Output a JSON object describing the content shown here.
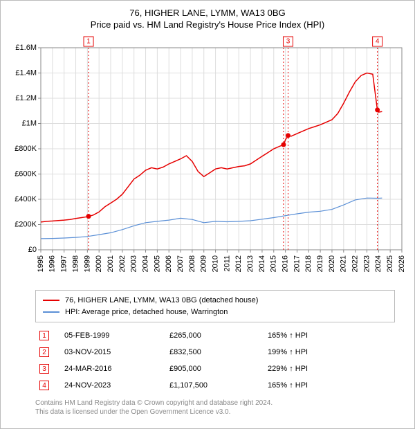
{
  "title_line1": "76, HIGHER LANE, LYMM, WA13 0BG",
  "title_line2": "Price paid vs. HM Land Registry's House Price Index (HPI)",
  "chart": {
    "type": "line",
    "xlim": [
      1995,
      2026
    ],
    "ylim": [
      0,
      1600000
    ],
    "ytick_step": 200000,
    "ytick_labels": [
      "£0",
      "£200K",
      "£400K",
      "£600K",
      "£800K",
      "£1M",
      "£1.2M",
      "£1.4M",
      "£1.6M"
    ],
    "xtick_step": 1,
    "background_color": "#ffffff",
    "grid_color": "#dddddd",
    "axis_color": "#888888",
    "label_fontsize": 11,
    "series": [
      {
        "name": "price_paid",
        "label": "76, HIGHER LANE, LYMM, WA13 0BG (detached house)",
        "color": "#e60000",
        "line_width": 1.5,
        "points": [
          [
            1995.0,
            220000
          ],
          [
            1995.5,
            225000
          ],
          [
            1996.0,
            228000
          ],
          [
            1996.5,
            232000
          ],
          [
            1997.0,
            235000
          ],
          [
            1997.5,
            240000
          ],
          [
            1998.0,
            248000
          ],
          [
            1998.5,
            255000
          ],
          [
            1999.0,
            262000
          ],
          [
            1999.5,
            275000
          ],
          [
            2000.0,
            300000
          ],
          [
            2000.5,
            340000
          ],
          [
            2001.0,
            370000
          ],
          [
            2001.5,
            400000
          ],
          [
            2002.0,
            440000
          ],
          [
            2002.5,
            500000
          ],
          [
            2003.0,
            560000
          ],
          [
            2003.5,
            590000
          ],
          [
            2004.0,
            630000
          ],
          [
            2004.5,
            650000
          ],
          [
            2005.0,
            640000
          ],
          [
            2005.5,
            655000
          ],
          [
            2006.0,
            680000
          ],
          [
            2006.5,
            700000
          ],
          [
            2007.0,
            720000
          ],
          [
            2007.5,
            745000
          ],
          [
            2008.0,
            700000
          ],
          [
            2008.5,
            620000
          ],
          [
            2009.0,
            580000
          ],
          [
            2009.5,
            610000
          ],
          [
            2010.0,
            640000
          ],
          [
            2010.5,
            650000
          ],
          [
            2011.0,
            640000
          ],
          [
            2011.5,
            650000
          ],
          [
            2012.0,
            660000
          ],
          [
            2012.5,
            665000
          ],
          [
            2013.0,
            680000
          ],
          [
            2013.5,
            710000
          ],
          [
            2014.0,
            740000
          ],
          [
            2014.5,
            770000
          ],
          [
            2015.0,
            800000
          ],
          [
            2015.5,
            820000
          ],
          [
            2015.85,
            832500
          ],
          [
            2016.0,
            870000
          ],
          [
            2016.23,
            905000
          ],
          [
            2016.5,
            900000
          ],
          [
            2017.0,
            920000
          ],
          [
            2017.5,
            940000
          ],
          [
            2018.0,
            960000
          ],
          [
            2018.5,
            975000
          ],
          [
            2019.0,
            990000
          ],
          [
            2019.5,
            1010000
          ],
          [
            2020.0,
            1030000
          ],
          [
            2020.5,
            1080000
          ],
          [
            2021.0,
            1160000
          ],
          [
            2021.5,
            1250000
          ],
          [
            2022.0,
            1330000
          ],
          [
            2022.5,
            1380000
          ],
          [
            2023.0,
            1400000
          ],
          [
            2023.5,
            1390000
          ],
          [
            2023.9,
            1107500
          ],
          [
            2024.0,
            1090000
          ],
          [
            2024.3,
            1095000
          ]
        ]
      },
      {
        "name": "hpi",
        "label": "HPI: Average price, detached house, Warrington",
        "color": "#5a8fd6",
        "line_width": 1.2,
        "points": [
          [
            1995.0,
            88000
          ],
          [
            1996.0,
            90000
          ],
          [
            1997.0,
            93000
          ],
          [
            1998.0,
            98000
          ],
          [
            1999.0,
            105000
          ],
          [
            2000.0,
            120000
          ],
          [
            2001.0,
            135000
          ],
          [
            2002.0,
            160000
          ],
          [
            2003.0,
            190000
          ],
          [
            2004.0,
            215000
          ],
          [
            2005.0,
            225000
          ],
          [
            2006.0,
            235000
          ],
          [
            2007.0,
            250000
          ],
          [
            2008.0,
            240000
          ],
          [
            2009.0,
            215000
          ],
          [
            2010.0,
            225000
          ],
          [
            2011.0,
            222000
          ],
          [
            2012.0,
            225000
          ],
          [
            2013.0,
            230000
          ],
          [
            2014.0,
            242000
          ],
          [
            2015.0,
            255000
          ],
          [
            2016.0,
            270000
          ],
          [
            2017.0,
            285000
          ],
          [
            2018.0,
            298000
          ],
          [
            2019.0,
            305000
          ],
          [
            2020.0,
            320000
          ],
          [
            2021.0,
            355000
          ],
          [
            2022.0,
            395000
          ],
          [
            2023.0,
            410000
          ],
          [
            2024.0,
            408000
          ],
          [
            2024.3,
            410000
          ]
        ]
      }
    ],
    "sale_markers": [
      {
        "idx": "1",
        "x": 1999.1,
        "y": 265000,
        "show_dot": true,
        "show_top_box": true
      },
      {
        "idx": "2",
        "x": 2015.84,
        "y": 832500,
        "show_dot": true,
        "show_top_box": false
      },
      {
        "idx": "3",
        "x": 2016.23,
        "y": 905000,
        "show_dot": true,
        "show_top_box": true
      },
      {
        "idx": "4",
        "x": 2023.9,
        "y": 1107500,
        "show_dot": true,
        "show_top_box": true
      }
    ]
  },
  "legend": {
    "items": [
      {
        "color": "#e60000",
        "label": "76, HIGHER LANE, LYMM, WA13 0BG (detached house)"
      },
      {
        "color": "#5a8fd6",
        "label": "HPI: Average price, detached house, Warrington"
      }
    ]
  },
  "sales_table": {
    "arrow": "↑",
    "hpi_suffix": "HPI",
    "rows": [
      {
        "idx": "1",
        "date": "05-FEB-1999",
        "price": "£265,000",
        "pct": "165%"
      },
      {
        "idx": "2",
        "date": "03-NOV-2015",
        "price": "£832,500",
        "pct": "199%"
      },
      {
        "idx": "3",
        "date": "24-MAR-2016",
        "price": "£905,000",
        "pct": "229%"
      },
      {
        "idx": "4",
        "date": "24-NOV-2023",
        "price": "£1,107,500",
        "pct": "165%"
      }
    ]
  },
  "footer": {
    "line1": "Contains HM Land Registry data © Crown copyright and database right 2024.",
    "line2": "This data is licensed under the Open Government Licence v3.0."
  }
}
